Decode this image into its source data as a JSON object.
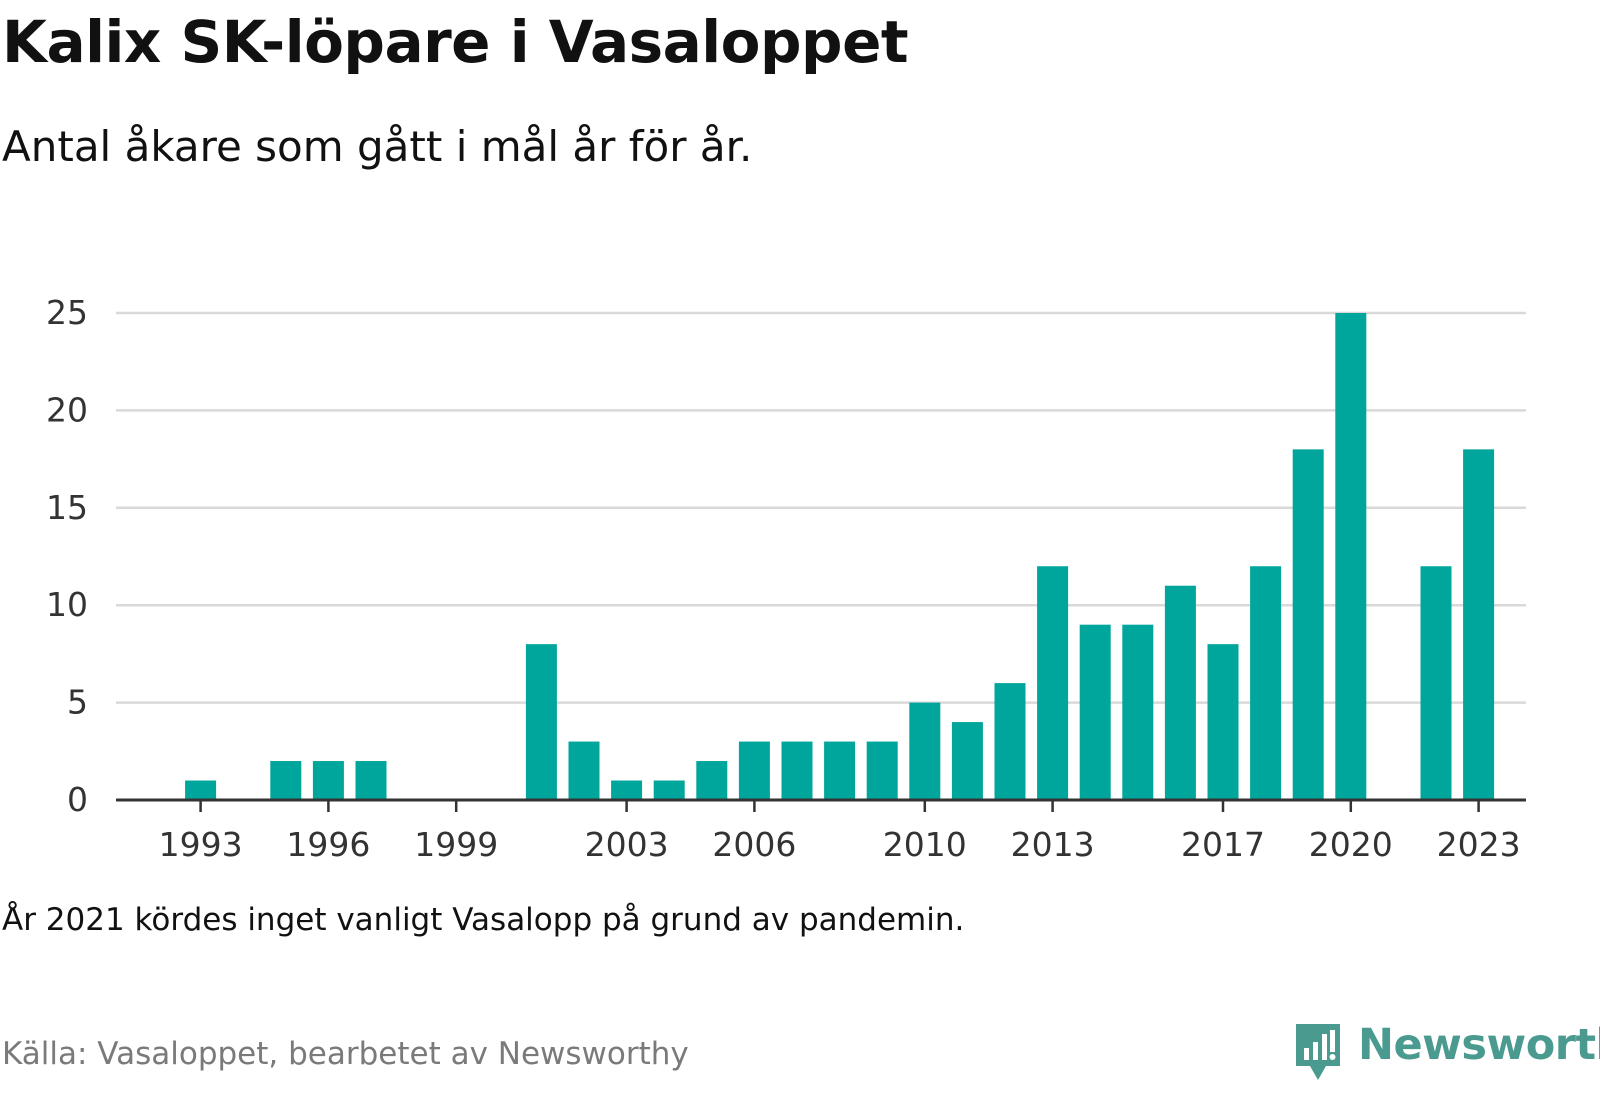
{
  "title": "Kalix SK-löpare i Vasaloppet",
  "subtitle": "Antal åkare som gått i mål år för år.",
  "note": "År 2021 kördes inget vanligt Vasalopp på grund av pandemin.",
  "source": "Källa: Vasaloppet, bearbetet av Newsworthy",
  "brand": "Newsworthy",
  "colors": {
    "bar": "#00a59b",
    "grid": "#d9d9d9",
    "axis": "#333333",
    "tick_text": "#333333",
    "brand": "#4a9a90"
  },
  "chart_data": {
    "type": "bar",
    "categories": [
      1992,
      1993,
      1994,
      1995,
      1996,
      1997,
      1998,
      1999,
      2000,
      2001,
      2002,
      2003,
      2004,
      2005,
      2006,
      2007,
      2008,
      2009,
      2010,
      2011,
      2012,
      2013,
      2014,
      2015,
      2016,
      2017,
      2018,
      2019,
      2020,
      2021,
      2022,
      2023
    ],
    "values": [
      0,
      1,
      0,
      2,
      2,
      2,
      0,
      0,
      0,
      8,
      3,
      1,
      1,
      2,
      3,
      3,
      3,
      3,
      5,
      4,
      6,
      12,
      9,
      9,
      11,
      8,
      12,
      18,
      25,
      null,
      12,
      18
    ],
    "x_tick_labels": [
      "1993",
      "1996",
      "1999",
      "2003",
      "2006",
      "2010",
      "2013",
      "2017",
      "2020",
      "2023"
    ],
    "y_ticks": [
      0,
      5,
      10,
      15,
      20,
      25
    ],
    "ylim": [
      0,
      25
    ],
    "xlabel": "",
    "ylabel": "",
    "grid": true,
    "legend": "none"
  }
}
